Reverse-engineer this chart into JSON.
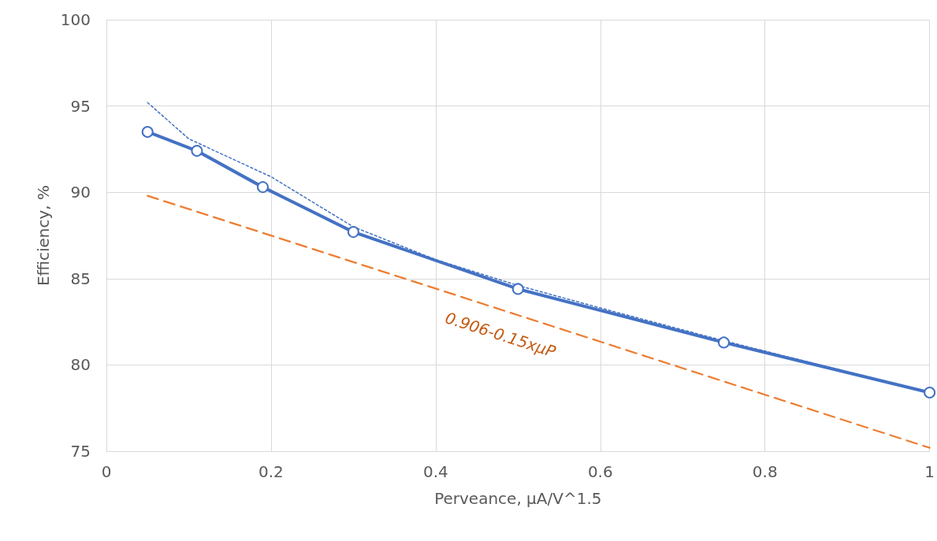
{
  "chart_data": {
    "type": "line",
    "xlabel": "Perveance, μA/V^1.5",
    "ylabel": "Efficiency, %",
    "xlim": [
      0,
      1
    ],
    "xticks": [
      0,
      0.2,
      0.4,
      0.6,
      0.8,
      1
    ],
    "ylim": [
      75,
      100
    ],
    "yticks": [
      75,
      80,
      85,
      90,
      95,
      100
    ],
    "grid": true,
    "series": [
      {
        "color": "#ed7d31",
        "x": [
          0.05,
          1
        ],
        "values": [
          89.8,
          75.2
        ],
        "marker": "none",
        "line_style": "dashed"
      },
      {
        "color": "#4472c4",
        "x": [
          0.05,
          0.1,
          0.2,
          0.3,
          0.4,
          0.5,
          0.6,
          0.75,
          0.9,
          1
        ],
        "values": [
          95.2,
          93.1,
          90.9,
          88.0,
          86.1,
          84.6,
          83.3,
          81.4,
          79.6,
          78.4
        ],
        "marker": "none",
        "line_style": "dotted"
      },
      {
        "color": "#4472c4",
        "x": [
          0.05,
          0.11,
          0.19,
          0.3,
          0.5,
          0.75,
          1
        ],
        "values": [
          93.5,
          92.4,
          90.3,
          87.7,
          84.4,
          81.3,
          78.4
        ],
        "marker": "circle",
        "line_style": "solid"
      }
    ],
    "annotations": [
      "0.906-0.15xμP"
    ]
  }
}
